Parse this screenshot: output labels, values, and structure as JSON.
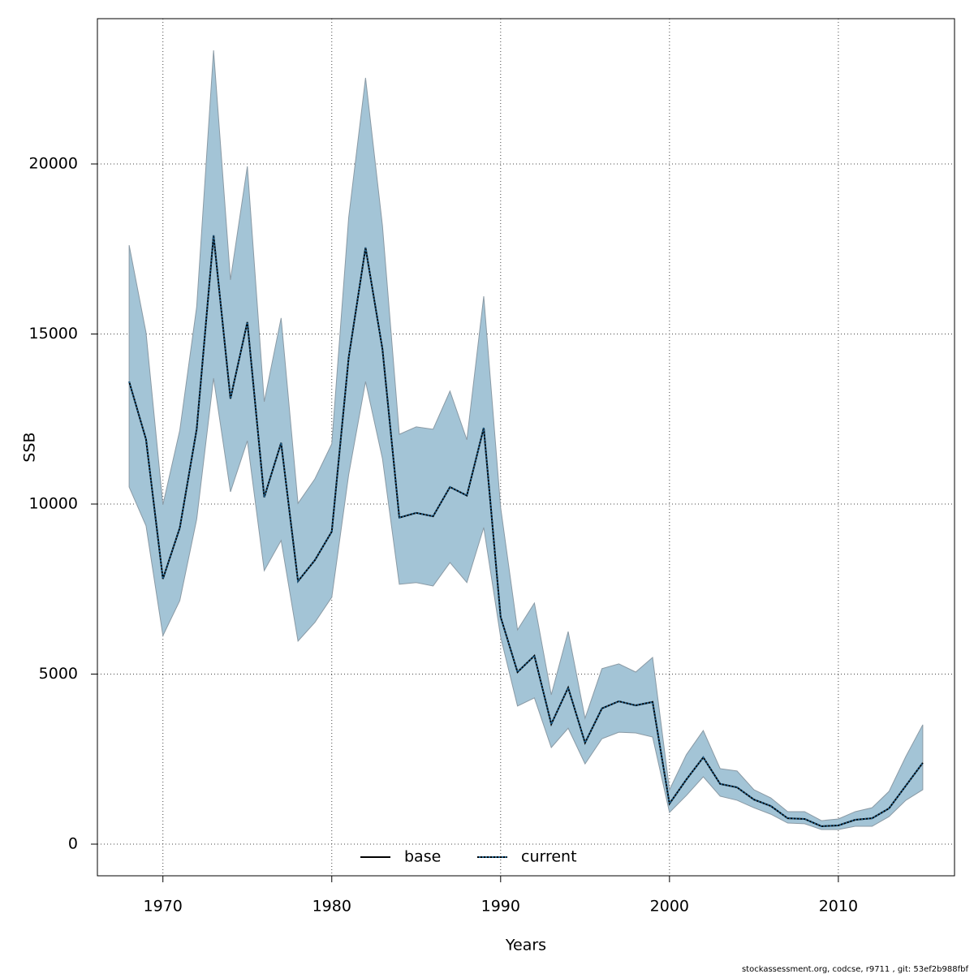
{
  "chart_data": {
    "type": "line",
    "x": [
      1968,
      1969,
      1970,
      1971,
      1972,
      1973,
      1974,
      1975,
      1976,
      1977,
      1978,
      1979,
      1980,
      1981,
      1982,
      1983,
      1984,
      1985,
      1986,
      1987,
      1988,
      1989,
      1990,
      1991,
      1992,
      1993,
      1994,
      1995,
      1996,
      1997,
      1998,
      1999,
      2000,
      2001,
      2002,
      2003,
      2004,
      2005,
      2006,
      2007,
      2008,
      2009,
      2010,
      2011,
      2012,
      2013,
      2014,
      2015
    ],
    "series": [
      {
        "name": "base",
        "color": "#000000",
        "dash": false,
        "values": [
          13600,
          11900,
          7800,
          9300,
          12200,
          17900,
          13100,
          15350,
          10200,
          11800,
          7730,
          8350,
          9190,
          14300,
          17540,
          14560,
          9600,
          9740,
          9640,
          10500,
          10250,
          12240,
          6680,
          5060,
          5540,
          3530,
          4600,
          2980,
          3990,
          4200,
          4080,
          4180,
          1190,
          1900,
          2550,
          1770,
          1670,
          1310,
          1120,
          760,
          740,
          525,
          550,
          715,
          760,
          1050,
          1720,
          2390
        ]
      },
      {
        "name": "current",
        "color": "#1f5f8b",
        "dash": true,
        "values": [
          13600,
          11900,
          7800,
          9300,
          12200,
          17900,
          13100,
          15350,
          10200,
          11800,
          7730,
          8350,
          9190,
          14300,
          17540,
          14560,
          9600,
          9740,
          9640,
          10500,
          10250,
          12240,
          6680,
          5060,
          5540,
          3530,
          4600,
          2980,
          3990,
          4200,
          4080,
          4180,
          1190,
          1900,
          2550,
          1770,
          1670,
          1310,
          1120,
          760,
          740,
          525,
          550,
          715,
          760,
          1050,
          1720,
          2390
        ]
      }
    ],
    "confidence_band": {
      "color": "#a3c4d6",
      "upper": [
        17610,
        15040,
        9980,
        12170,
        15800,
        23340,
        16590,
        19930,
        13010,
        15470,
        10020,
        10740,
        11770,
        18420,
        22530,
        18190,
        12050,
        12270,
        12200,
        13320,
        11890,
        16110,
        9900,
        6300,
        7090,
        4390,
        6250,
        3700,
        5160,
        5300,
        5060,
        5490,
        1600,
        2630,
        3340,
        2220,
        2150,
        1600,
        1360,
        955,
        955,
        690,
        740,
        955,
        1070,
        1550,
        2580,
        3510
      ],
      "lower": [
        10500,
        9360,
        6130,
        7160,
        9550,
        13700,
        10360,
        11860,
        8040,
        8930,
        5970,
        6520,
        7260,
        10860,
        13600,
        11340,
        7640,
        7690,
        7590,
        8280,
        7690,
        9310,
        6090,
        4060,
        4300,
        2840,
        3410,
        2360,
        3100,
        3290,
        3270,
        3150,
        930,
        1430,
        1980,
        1410,
        1290,
        1070,
        880,
        620,
        600,
        430,
        430,
        525,
        525,
        810,
        1290,
        1600
      ]
    },
    "xlabel": "Years",
    "ylabel": "SSB",
    "xlim": [
      1966.12,
      2016.88
    ],
    "xticks": [
      1970,
      1980,
      1990,
      2000,
      2010
    ],
    "ylim": [
      -931,
      24272
    ],
    "yticks": [
      0,
      5000,
      10000,
      15000,
      20000
    ],
    "grid": true,
    "legend": "bottom",
    "footer": "stockassessment.org, codcse, r9711 , git: 53ef2b988fbf"
  }
}
